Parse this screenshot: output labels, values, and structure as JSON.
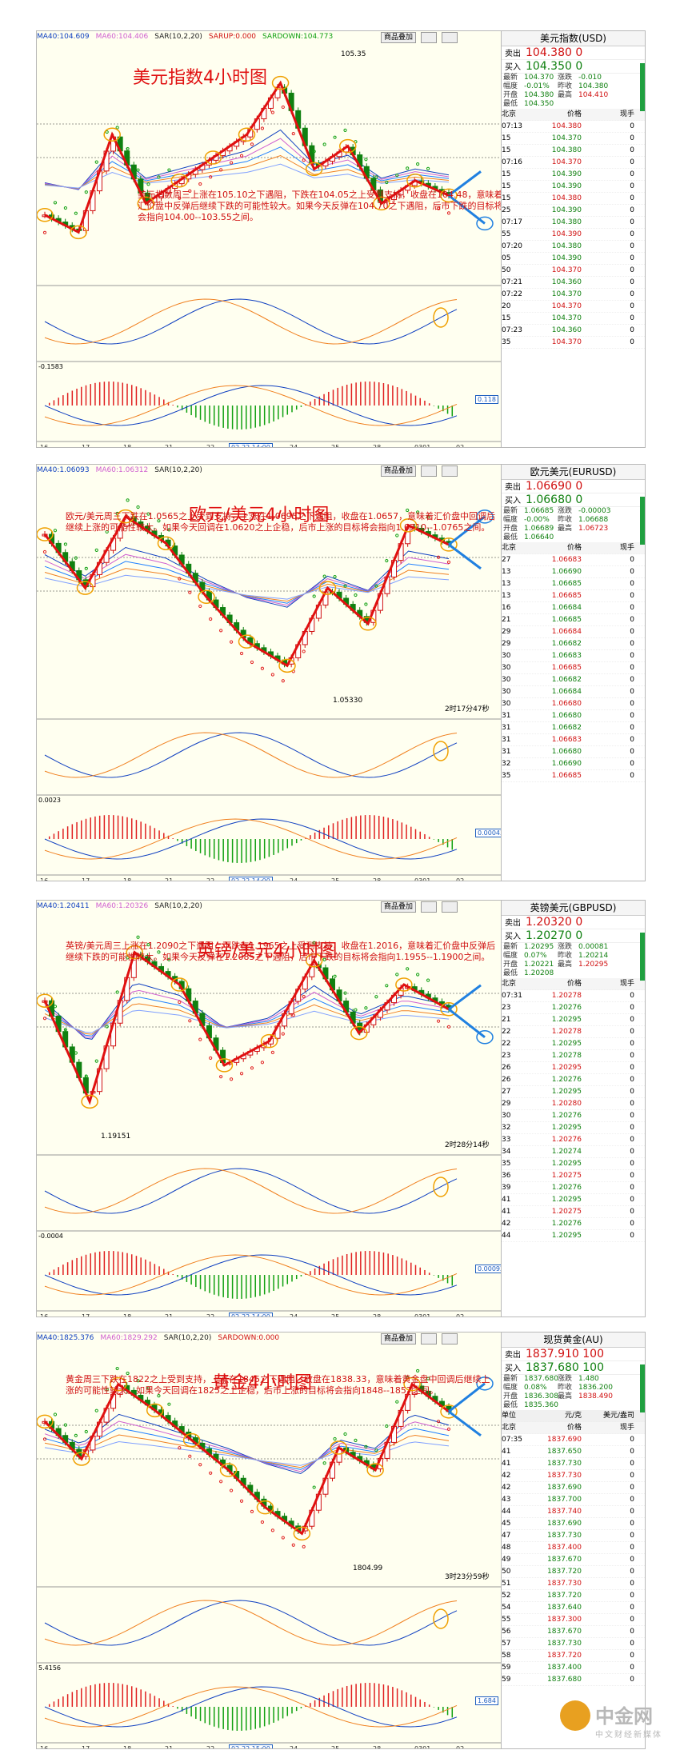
{
  "panels": [
    {
      "id": "usd",
      "title_cn": "美元指数4小时图",
      "header": [
        "MA40:104.609",
        "MA60:104.406",
        "SAR(10,2,20)",
        "SARUP:0.000",
        "SARDOWN:104.773"
      ],
      "buttons": [
        "商品叠加",
        "",
        ""
      ],
      "note": "美元指数周三上涨在105.10之下遇阻，下跌在104.05之上受到支持，收盘在104.48，意味着汇价盘中反弹后继续下跌的可能性较大。如果今天反弹在104.70之下遇阻，后市下跌的目标将会指向104.00--103.55之间。",
      "price_label": "105.35",
      "sub_label": "-0.1583",
      "macd_box": "0.118",
      "date_box": "02-22 14:00",
      "x_labels": [
        "16",
        "17",
        "18",
        "21",
        "22",
        "",
        "24",
        "25",
        "28",
        "0301",
        "02"
      ],
      "quote": {
        "name": "美元指数(USD)",
        "sell_label": "卖出",
        "sell": "104.380 0",
        "buy_label": "买入",
        "buy": "104.350 0",
        "stats": [
          [
            "最新",
            "104.370",
            "涨跌",
            "-0.010"
          ],
          [
            "幅度",
            "-0.01%",
            "昨收",
            "104.380"
          ],
          [
            "开盘",
            "104.380",
            "最高",
            "104.410"
          ],
          [
            "最低",
            "104.350",
            "",
            ""
          ]
        ],
        "cols": [
          "北京",
          "价格",
          "现手"
        ],
        "ticks": [
          [
            "07:13",
            "104.380",
            "0"
          ],
          [
            "15",
            "104.370",
            "0"
          ],
          [
            "15",
            "104.380",
            "0"
          ],
          [
            "07:16",
            "104.370",
            "0"
          ],
          [
            "15",
            "104.390",
            "0"
          ],
          [
            "15",
            "104.390",
            "0"
          ],
          [
            "15",
            "104.380",
            "0"
          ],
          [
            "25",
            "104.390",
            "0"
          ],
          [
            "07:17",
            "104.380",
            "0"
          ],
          [
            "55",
            "104.390",
            "0"
          ],
          [
            "07:20",
            "104.380",
            "0"
          ],
          [
            "05",
            "104.390",
            "0"
          ],
          [
            "50",
            "104.370",
            "0"
          ],
          [
            "07:21",
            "104.360",
            "0"
          ],
          [
            "07:22",
            "104.370",
            "0"
          ],
          [
            "20",
            "104.370",
            "0"
          ],
          [
            "15",
            "104.370",
            "0"
          ],
          [
            "07:23",
            "104.360",
            "0"
          ],
          [
            "35",
            "104.370",
            "0"
          ]
        ]
      }
    },
    {
      "id": "eur",
      "title_cn": "欧元/美元4小时图",
      "header": [
        "MA40:1.06093",
        "MA60:1.06312",
        "SAR(10,2,20)"
      ],
      "buttons": [
        "商品叠加",
        "",
        ""
      ],
      "note": "欧元/美元周三下跌在1.0565之上受到支持，上涨在1.0695之下遇阻，收盘在1.0657，意味着汇价盘中回调后继续上涨的可能性较大。如果今天回调在1.0620之上企稳，后市上涨的目标将会指向1.0710--1.0765之间。",
      "price_label": "1.05330",
      "sub_label": "0.0023",
      "macd_box": "0.00043",
      "date_box": "02-22 14:00",
      "countdown": "2时17分47秒",
      "x_labels": [
        "16",
        "17",
        "18",
        "21",
        "22",
        "",
        "24",
        "25",
        "28",
        "0301",
        "02"
      ],
      "quote": {
        "name": "欧元美元(EURUSD)",
        "sell_label": "卖出",
        "sell": "1.06690 0",
        "buy_label": "买入",
        "buy": "1.06680 0",
        "stats": [
          [
            "最新",
            "1.06685",
            "涨跌",
            "-0.00003"
          ],
          [
            "幅度",
            "-0.00%",
            "昨收",
            "1.06688"
          ],
          [
            "开盘",
            "1.06689",
            "最高",
            "1.06723"
          ],
          [
            "最低",
            "1.06640",
            "",
            ""
          ]
        ],
        "cols": [
          "北京",
          "价格",
          "现手"
        ],
        "ticks": [
          [
            "27",
            "1.06683",
            "0"
          ],
          [
            "13",
            "1.06690",
            "0"
          ],
          [
            "13",
            "1.06685",
            "0"
          ],
          [
            "13",
            "1.06685",
            "0"
          ],
          [
            "16",
            "1.06684",
            "0"
          ],
          [
            "21",
            "1.06685",
            "0"
          ],
          [
            "29",
            "1.06684",
            "0"
          ],
          [
            "29",
            "1.06682",
            "0"
          ],
          [
            "30",
            "1.06683",
            "0"
          ],
          [
            "30",
            "1.06685",
            "0"
          ],
          [
            "30",
            "1.06682",
            "0"
          ],
          [
            "30",
            "1.06684",
            "0"
          ],
          [
            "30",
            "1.06680",
            "0"
          ],
          [
            "31",
            "1.06680",
            "0"
          ],
          [
            "31",
            "1.06682",
            "0"
          ],
          [
            "31",
            "1.06683",
            "0"
          ],
          [
            "31",
            "1.06680",
            "0"
          ],
          [
            "32",
            "1.06690",
            "0"
          ],
          [
            "35",
            "1.06685",
            "0"
          ]
        ]
      }
    },
    {
      "id": "gbp",
      "title_cn": "英镑/美元4小时图",
      "header": [
        "MA40:1.20411",
        "MA60:1.20326",
        "SAR(10,2,20)"
      ],
      "buttons": [
        "商品叠加",
        "",
        ""
      ],
      "note": "英镑/美元周三上涨在1.2090之下遇阻，下跌在1.1965之上受到支持，收盘在1.2016，意味着汇价盘中反弹后继续下跌的可能性较大。如果今天反弹在1.2085之下遇阻，后市下跌的目标将会指向1.1955--1.1900之间。",
      "price_label": "1.19151",
      "sub_label": "-0.0004",
      "macd_box": "0.00092",
      "date_box": "02-22 14:00",
      "countdown": "2时28分14秒",
      "x_labels": [
        "16",
        "17",
        "18",
        "21",
        "22",
        "",
        "24",
        "25",
        "28",
        "0301",
        "02"
      ],
      "quote": {
        "name": "英镑美元(GBPUSD)",
        "sell_label": "卖出",
        "sell": "1.20320 0",
        "buy_label": "买入",
        "buy": "1.20270 0",
        "stats": [
          [
            "最新",
            "1.20295",
            "涨跌",
            "0.00081"
          ],
          [
            "幅度",
            "0.07%",
            "昨收",
            "1.20214"
          ],
          [
            "开盘",
            "1.20221",
            "最高",
            "1.20295"
          ],
          [
            "最低",
            "1.20208",
            "",
            ""
          ]
        ],
        "cols": [
          "北京",
          "价格",
          "现手"
        ],
        "ticks": [
          [
            "07:31",
            "1.20278",
            "0"
          ],
          [
            "23",
            "1.20276",
            "0"
          ],
          [
            "21",
            "1.20295",
            "0"
          ],
          [
            "22",
            "1.20278",
            "0"
          ],
          [
            "22",
            "1.20295",
            "0"
          ],
          [
            "23",
            "1.20278",
            "0"
          ],
          [
            "26",
            "1.20295",
            "0"
          ],
          [
            "26",
            "1.20276",
            "0"
          ],
          [
            "27",
            "1.20295",
            "0"
          ],
          [
            "29",
            "1.20280",
            "0"
          ],
          [
            "30",
            "1.20276",
            "0"
          ],
          [
            "32",
            "1.20295",
            "0"
          ],
          [
            "33",
            "1.20276",
            "0"
          ],
          [
            "34",
            "1.20274",
            "0"
          ],
          [
            "35",
            "1.20295",
            "0"
          ],
          [
            "36",
            "1.20275",
            "0"
          ],
          [
            "39",
            "1.20276",
            "0"
          ],
          [
            "41",
            "1.20295",
            "0"
          ],
          [
            "41",
            "1.20275",
            "0"
          ],
          [
            "42",
            "1.20276",
            "0"
          ],
          [
            "44",
            "1.20295",
            "0"
          ]
        ]
      }
    },
    {
      "id": "gold",
      "title_cn": "黄金4小时图",
      "header": [
        "MA40:1825.376",
        "MA60:1829.292",
        "SAR(10,2,20)",
        "SARDOWN:0.000"
      ],
      "buttons": [
        "商品叠加",
        "",
        ""
      ],
      "note": "黄金周三下跌在1822之上受到支持，上涨在1845之下遇阻，收盘在1838.33，意味着黄金盘中回调后继续上涨的可能性较大。如果今天回调在1825之上企稳，后市上涨的目标将会指向1848--1857之间。",
      "price_label": "1804.99",
      "sub_label": "5.4156",
      "macd_box": "1.684",
      "date_box": "02-22 15:00",
      "countdown": "3时23分59秒",
      "x_labels": [
        "16",
        "17",
        "18",
        "21",
        "22",
        "",
        "24",
        "25",
        "28",
        "0301",
        "02"
      ],
      "quote": {
        "name": "现货黄金(AU)",
        "sell_label": "卖出",
        "sell": "1837.910 100",
        "buy_label": "买入",
        "buy": "1837.680 100",
        "stats": [
          [
            "最新",
            "1837.680",
            "涨跌",
            "1.480"
          ],
          [
            "幅度",
            "0.08%",
            "昨收",
            "1836.200"
          ],
          [
            "开盘",
            "1836.308",
            "最高",
            "1838.490"
          ],
          [
            "最低",
            "1835.360",
            "",
            ""
          ]
        ],
        "unit_row": [
          "单位",
          "元/克",
          "美元/盎司"
        ],
        "cols": [
          "北京",
          "价格",
          "现手"
        ],
        "ticks": [
          [
            "07:35",
            "1837.690",
            "0"
          ],
          [
            "41",
            "1837.650",
            "0"
          ],
          [
            "41",
            "1837.730",
            "0"
          ],
          [
            "42",
            "1837.730",
            "0"
          ],
          [
            "42",
            "1837.690",
            "0"
          ],
          [
            "43",
            "1837.700",
            "0"
          ],
          [
            "44",
            "1837.740",
            "0"
          ],
          [
            "45",
            "1837.690",
            "0"
          ],
          [
            "47",
            "1837.730",
            "0"
          ],
          [
            "48",
            "1837.400",
            "0"
          ],
          [
            "49",
            "1837.670",
            "0"
          ],
          [
            "50",
            "1837.720",
            "0"
          ],
          [
            "51",
            "1837.730",
            "0"
          ],
          [
            "52",
            "1837.720",
            "0"
          ],
          [
            "54",
            "1837.640",
            "0"
          ],
          [
            "55",
            "1837.300",
            "0"
          ],
          [
            "56",
            "1837.670",
            "0"
          ],
          [
            "57",
            "1837.730",
            "0"
          ],
          [
            "58",
            "1837.720",
            "0"
          ],
          [
            "59",
            "1837.400",
            "0"
          ],
          [
            "59",
            "1837.680",
            "0"
          ]
        ]
      }
    }
  ],
  "watermark": {
    "brand": "中金网",
    "sub": "中文财经新媒体",
    "url": "CNGOLD.COM.CN"
  },
  "chart_data": [
    {
      "type": "line",
      "title": "美元指数4小时图",
      "series": [
        {
          "name": "美元指数",
          "values": [
            104.2,
            104.05,
            104.9,
            104.3,
            104.5,
            104.7,
            104.9,
            105.35,
            104.6,
            104.8,
            104.3,
            104.5,
            104.37
          ]
        }
      ]
    },
    {
      "type": "line",
      "title": "欧元/美元4小时图",
      "series": [
        {
          "name": "欧元/美元",
          "values": [
            1.068,
            1.062,
            1.07,
            1.067,
            1.061,
            1.056,
            1.0533,
            1.062,
            1.058,
            1.069,
            1.06685
          ]
        }
      ]
    },
    {
      "type": "line",
      "title": "英镑/美元4小时图",
      "series": [
        {
          "name": "英镑/美元",
          "values": [
            1.204,
            1.1915,
            1.21,
            1.206,
            1.196,
            1.199,
            1.209,
            1.2,
            1.206,
            1.20295
          ]
        }
      ]
    },
    {
      "type": "line",
      "title": "黄金4小时图",
      "series": [
        {
          "name": "黄金",
          "values": [
            1835,
            1825,
            1845,
            1838,
            1830,
            1822,
            1812,
            1804.99,
            1828,
            1822,
            1845,
            1837.68
          ]
        }
      ]
    }
  ]
}
